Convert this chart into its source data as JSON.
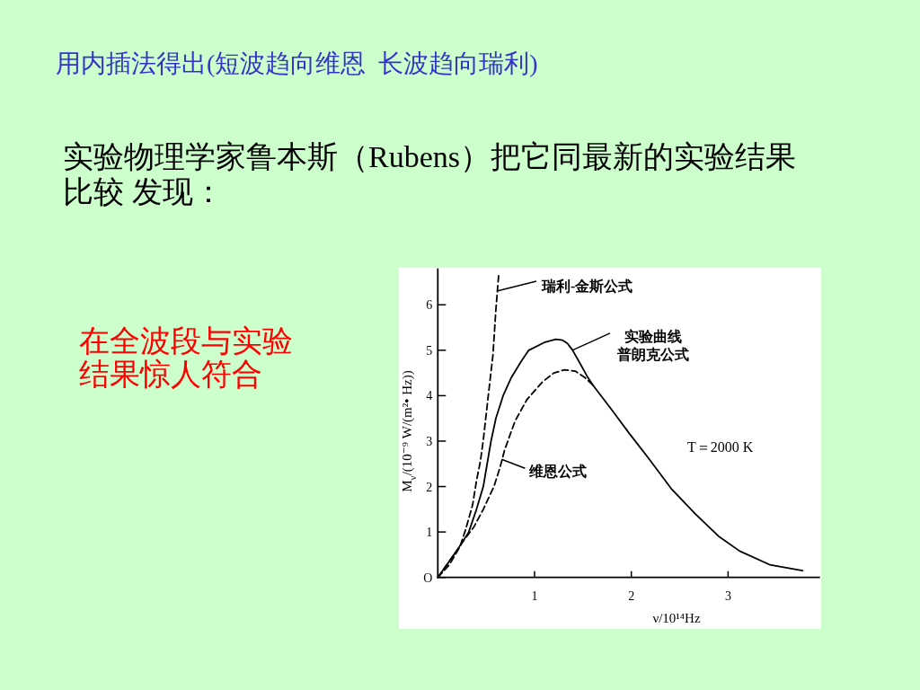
{
  "chart_data": {
    "type": "line",
    "title": "用内插法得出(短波趋向维恩  长波趋向瑞利)",
    "subtitle": "实验物理学家鲁本斯（Rubens）把它同最新的实验结果比较 发现：",
    "xlabel": "ν/10¹⁴Hz",
    "ylabel": "M$_{ν}$/(10⁻⁹ W/(m²• Hz))",
    "annotations": [
      {
        "text": "瑞利-金斯公式",
        "x": 0.61,
        "y": 6.3
      },
      {
        "text": "实验曲线",
        "x": 1.39,
        "y": 5.0
      },
      {
        "text": "普朗克公式",
        "x": 1.39,
        "y": 5.0
      },
      {
        "text": "维恩公式",
        "x": 0.66,
        "y": 2.6
      },
      "T＝2000 K",
      "在全波段与实验结果惊人符合"
    ],
    "xlim": [
      0,
      3.95
    ],
    "ylim": [
      0,
      6.8
    ],
    "xticks": [
      1,
      2,
      3
    ],
    "yticks": [
      {
        "value": 0,
        "label": "O"
      },
      1,
      2,
      3,
      4,
      5,
      6
    ],
    "series": [
      {
        "color": "#000000",
        "line_style": "dashed",
        "x": [
          0,
          0.12,
          0.23,
          0.29,
          0.36,
          0.4,
          0.44,
          0.47,
          0.52,
          0.57,
          0.6,
          0.63
        ],
        "values": [
          0,
          0.28,
          0.68,
          1.07,
          1.6,
          2.13,
          2.56,
          3.02,
          3.97,
          4.9,
          5.89,
          6.68
        ]
      },
      {
        "color": "#000000",
        "line_style": "solid",
        "x": [
          0,
          0.2,
          0.32,
          0.4,
          0.47,
          0.51,
          0.55,
          0.6,
          0.675,
          0.76,
          0.86,
          0.94,
          1.1,
          1.22,
          1.29,
          1.34,
          1.39,
          1.46,
          1.54,
          1.6,
          1.79,
          1.975,
          2.19,
          2.41,
          2.66,
          2.9,
          3.12,
          3.43,
          3.77
        ],
        "values": [
          0,
          0.6,
          1.0,
          1.5,
          2.0,
          2.5,
          3.0,
          3.5,
          4.0,
          4.4,
          4.75,
          5.0,
          5.17,
          5.24,
          5.22,
          5.15,
          5.01,
          4.75,
          4.44,
          4.24,
          3.71,
          3.18,
          2.59,
          1.96,
          1.4,
          0.91,
          0.58,
          0.28,
          0.15
        ]
      },
      {
        "color": "#000000",
        "line_style": "dashed",
        "x": [
          0,
          0.2,
          0.28,
          0.37,
          0.47,
          0.58,
          0.64,
          0.69,
          0.74,
          0.8,
          0.92,
          1.08,
          1.2,
          1.31,
          1.42,
          1.52,
          1.61
        ],
        "values": [
          0,
          0.6,
          0.85,
          1.1,
          1.5,
          2.0,
          2.4,
          2.8,
          3.1,
          3.45,
          3.91,
          4.3,
          4.5,
          4.57,
          4.54,
          4.4,
          4.22
        ]
      }
    ]
  }
}
